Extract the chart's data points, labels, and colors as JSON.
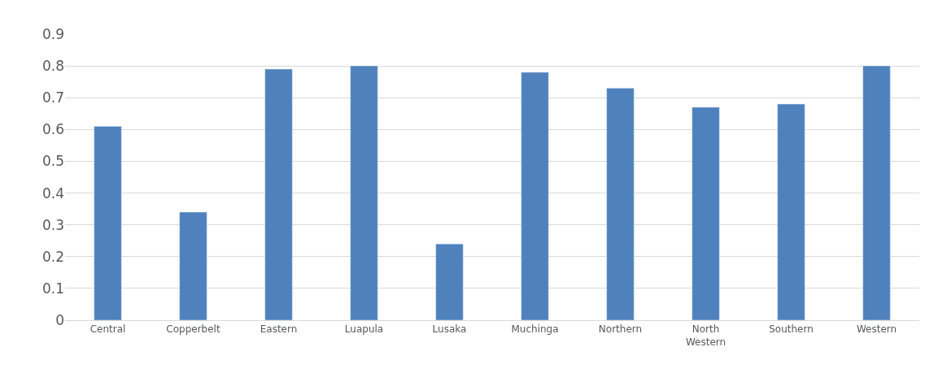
{
  "chart_data": {
    "type": "bar",
    "categories": [
      "Central",
      "Copperbelt",
      "Eastern",
      "Luapula",
      "Lusaka",
      "Muchinga",
      "Northern",
      "North Western",
      "Southern",
      "Western"
    ],
    "values": [
      0.61,
      0.34,
      0.79,
      0.8,
      0.24,
      0.78,
      0.73,
      0.67,
      0.68,
      0.8
    ],
    "color": "#4f81bd",
    "ylim": [
      0,
      0.9
    ],
    "yticks": [
      0,
      0.1,
      0.2,
      0.3,
      0.4,
      0.5,
      0.6,
      0.7,
      0.8,
      0.9
    ],
    "grid": "y"
  }
}
